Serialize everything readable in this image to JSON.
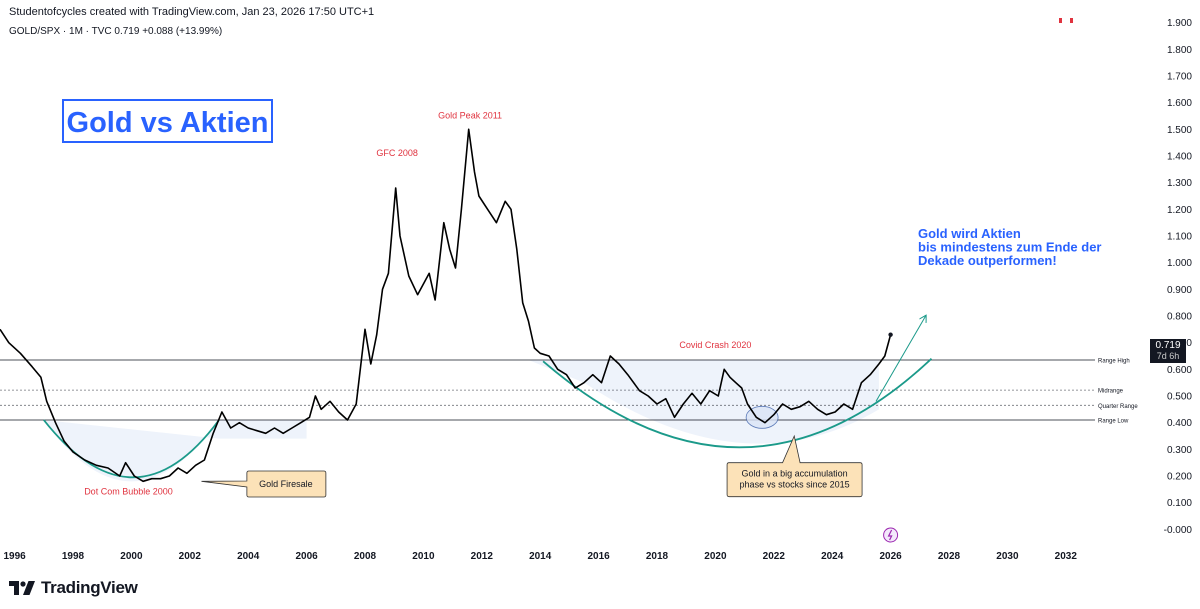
{
  "header": {
    "attribution": "Studentofcycles created with TradingView.com, Jan 23, 2026 17:50 UTC+1",
    "symbol_line": "GOLD/SPX · 1M · TVC  0.719  +0.088 (+13.99%)"
  },
  "brand": {
    "name": "TradingView"
  },
  "price_label": {
    "value": "0.719",
    "countdown": "7d 6h"
  },
  "colors": {
    "price_line": "#000000",
    "bowl_curve": "#1b9a8a",
    "annotation_red": "#e0333f",
    "title_blue": "#2962ff",
    "callout_fill": "#fce2b8",
    "shade_fill": "#eef3fb",
    "grid_line": "#131722"
  },
  "chart_data": {
    "type": "line",
    "title": "Gold vs Aktien",
    "xlabel": "",
    "ylabel": "",
    "xlim": [
      1995.5,
      2033
    ],
    "ylim": [
      -0.04,
      1.94
    ],
    "x_ticks": [
      "1996",
      "1998",
      "2000",
      "2002",
      "2004",
      "2006",
      "2008",
      "2010",
      "2012",
      "2014",
      "2016",
      "2018",
      "2020",
      "2022",
      "2024",
      "2026",
      "2028",
      "2030",
      "2032"
    ],
    "y_ticks": [
      "1.900",
      "1.800",
      "1.700",
      "1.600",
      "1.500",
      "1.400",
      "1.300",
      "1.200",
      "1.100",
      "1.000",
      "0.900",
      "0.800",
      "0.700",
      "0.600",
      "0.500",
      "0.400",
      "0.300",
      "0.200",
      "0.100",
      "-0.000"
    ],
    "series": [
      {
        "name": "GOLD/SPX",
        "points": [
          [
            1995.5,
            0.75
          ],
          [
            1995.8,
            0.7
          ],
          [
            1996.2,
            0.66
          ],
          [
            1996.6,
            0.61
          ],
          [
            1996.9,
            0.57
          ],
          [
            1997.1,
            0.48
          ],
          [
            1997.4,
            0.4
          ],
          [
            1997.7,
            0.33
          ],
          [
            1998.0,
            0.29
          ],
          [
            1998.4,
            0.26
          ],
          [
            1998.8,
            0.24
          ],
          [
            1999.2,
            0.23
          ],
          [
            1999.6,
            0.2
          ],
          [
            1999.8,
            0.25
          ],
          [
            2000.1,
            0.2
          ],
          [
            2000.4,
            0.18
          ],
          [
            2000.7,
            0.19
          ],
          [
            2001.0,
            0.19
          ],
          [
            2001.3,
            0.2
          ],
          [
            2001.6,
            0.23
          ],
          [
            2001.9,
            0.21
          ],
          [
            2002.2,
            0.24
          ],
          [
            2002.5,
            0.26
          ],
          [
            2002.8,
            0.36
          ],
          [
            2003.1,
            0.44
          ],
          [
            2003.4,
            0.38
          ],
          [
            2003.7,
            0.4
          ],
          [
            2004.0,
            0.38
          ],
          [
            2004.3,
            0.37
          ],
          [
            2004.6,
            0.36
          ],
          [
            2004.9,
            0.38
          ],
          [
            2005.2,
            0.36
          ],
          [
            2005.5,
            0.38
          ],
          [
            2005.8,
            0.4
          ],
          [
            2006.1,
            0.42
          ],
          [
            2006.3,
            0.5
          ],
          [
            2006.5,
            0.45
          ],
          [
            2006.8,
            0.48
          ],
          [
            2007.1,
            0.44
          ],
          [
            2007.4,
            0.41
          ],
          [
            2007.7,
            0.47
          ],
          [
            2008.0,
            0.75
          ],
          [
            2008.2,
            0.62
          ],
          [
            2008.4,
            0.73
          ],
          [
            2008.6,
            0.9
          ],
          [
            2008.8,
            0.96
          ],
          [
            2009.05,
            1.28
          ],
          [
            2009.2,
            1.1
          ],
          [
            2009.5,
            0.95
          ],
          [
            2009.8,
            0.88
          ],
          [
            2010.2,
            0.96
          ],
          [
            2010.4,
            0.86
          ],
          [
            2010.7,
            1.15
          ],
          [
            2010.9,
            1.05
          ],
          [
            2011.1,
            0.98
          ],
          [
            2011.3,
            1.2
          ],
          [
            2011.55,
            1.5
          ],
          [
            2011.75,
            1.34
          ],
          [
            2011.9,
            1.25
          ],
          [
            2012.2,
            1.2
          ],
          [
            2012.5,
            1.15
          ],
          [
            2012.8,
            1.23
          ],
          [
            2013.0,
            1.2
          ],
          [
            2013.2,
            1.05
          ],
          [
            2013.4,
            0.85
          ],
          [
            2013.6,
            0.78
          ],
          [
            2013.8,
            0.68
          ],
          [
            2014.0,
            0.66
          ],
          [
            2014.3,
            0.65
          ],
          [
            2014.6,
            0.6
          ],
          [
            2014.9,
            0.58
          ],
          [
            2015.2,
            0.53
          ],
          [
            2015.5,
            0.55
          ],
          [
            2015.8,
            0.58
          ],
          [
            2016.1,
            0.55
          ],
          [
            2016.4,
            0.65
          ],
          [
            2016.7,
            0.62
          ],
          [
            2017.0,
            0.58
          ],
          [
            2017.4,
            0.52
          ],
          [
            2017.7,
            0.5
          ],
          [
            2018.0,
            0.47
          ],
          [
            2018.3,
            0.49
          ],
          [
            2018.6,
            0.42
          ],
          [
            2018.9,
            0.47
          ],
          [
            2019.2,
            0.51
          ],
          [
            2019.5,
            0.47
          ],
          [
            2019.8,
            0.52
          ],
          [
            2020.1,
            0.5
          ],
          [
            2020.3,
            0.6
          ],
          [
            2020.5,
            0.57
          ],
          [
            2020.7,
            0.55
          ],
          [
            2020.9,
            0.53
          ],
          [
            2021.1,
            0.47
          ],
          [
            2021.4,
            0.42
          ],
          [
            2021.7,
            0.4
          ],
          [
            2022.0,
            0.43
          ],
          [
            2022.3,
            0.47
          ],
          [
            2022.6,
            0.45
          ],
          [
            2022.9,
            0.46
          ],
          [
            2023.2,
            0.48
          ],
          [
            2023.5,
            0.45
          ],
          [
            2023.8,
            0.43
          ],
          [
            2024.1,
            0.44
          ],
          [
            2024.4,
            0.47
          ],
          [
            2024.7,
            0.45
          ],
          [
            2025.0,
            0.55
          ],
          [
            2025.3,
            0.58
          ],
          [
            2025.6,
            0.62
          ],
          [
            2025.8,
            0.65
          ],
          [
            2026.0,
            0.73
          ]
        ]
      }
    ],
    "levels": [
      {
        "label": "Range High",
        "value": 0.635,
        "style": "solid"
      },
      {
        "label": "Midrange",
        "value": 0.522,
        "style": "dotted"
      },
      {
        "label": "Quarter Range",
        "value": 0.465,
        "style": "dotted"
      },
      {
        "label": "Range Low",
        "value": 0.41,
        "style": "solid"
      }
    ],
    "annotations": [
      {
        "id": "gfc",
        "text": "GFC 2008",
        "x": 2009.1,
        "y": 1.4
      },
      {
        "id": "peak",
        "text": "Gold Peak 2011",
        "x": 2011.6,
        "y": 1.54
      },
      {
        "id": "covid",
        "text": "Covid Crash 2020",
        "x": 2020.0,
        "y": 0.68
      },
      {
        "id": "dotcom",
        "text": "Dot Com Bubble 2000",
        "x": 1999.9,
        "y": 0.13
      }
    ],
    "callouts": [
      {
        "id": "firesale",
        "text": "Gold Firesale"
      },
      {
        "id": "accumulation",
        "lines": [
          "Gold in a big accumulation",
          "phase vs stocks since 2015"
        ]
      }
    ],
    "forecast_text": [
      "Gold wird Aktien",
      "bis mindestens zum Ende der",
      "Dekade outperformen!"
    ]
  }
}
